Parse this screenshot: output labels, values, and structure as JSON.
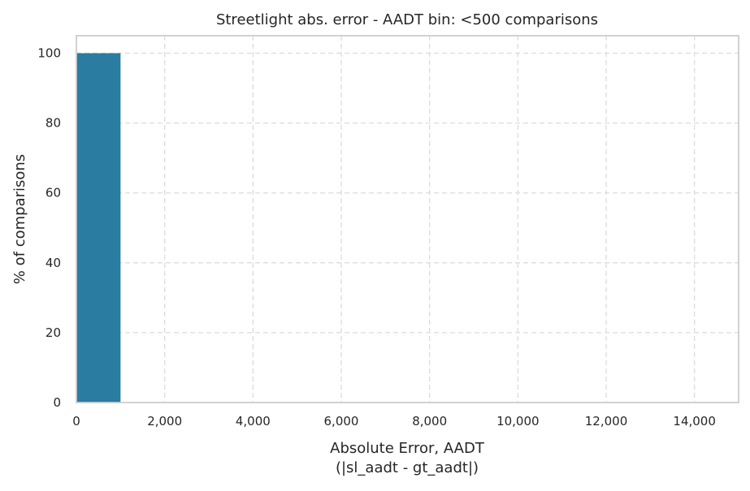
{
  "chart_data": {
    "type": "bar",
    "title": "Streetlight abs. error - AADT bin: <500 comparisons",
    "xlabel": "Absolute Error, AADT",
    "xlabel_line2": "(|sl_aadt - gt_aadt|)",
    "ylabel": "% of comparisons",
    "bins": [
      {
        "start": 0,
        "end": 1000,
        "value": 100
      }
    ],
    "xlim": [
      0,
      15000
    ],
    "ylim": [
      0,
      105
    ],
    "xticks": [
      0,
      2000,
      4000,
      6000,
      8000,
      10000,
      12000,
      14000
    ],
    "xtick_labels": [
      "0",
      "2,000",
      "4,000",
      "6,000",
      "8,000",
      "10,000",
      "12,000",
      "14,000"
    ],
    "yticks": [
      0,
      20,
      40,
      60,
      80,
      100
    ],
    "ytick_labels": [
      "0",
      "20",
      "40",
      "60",
      "80",
      "100"
    ],
    "grid": true,
    "bar_color": "#2a7ca0"
  }
}
